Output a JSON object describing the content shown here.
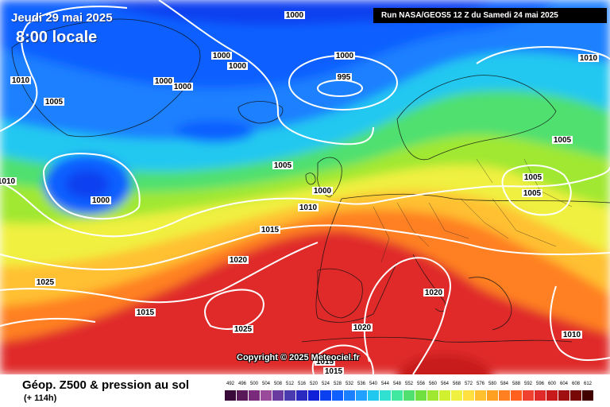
{
  "header": {
    "date_title": "Jeudi 29 mai 2025",
    "time_title": "8:00 locale",
    "run_info": "Run NASA/GEOS5 12 Z du Samedi 24 mai 2025"
  },
  "copyright": "Copyright © 2025 Meteociel.fr",
  "footer": {
    "title": "Géop. Z500 & pression au sol",
    "subtitle": "(+ 114h)"
  },
  "legend": {
    "values": [
      "492",
      "496",
      "500",
      "504",
      "508",
      "512",
      "516",
      "520",
      "524",
      "528",
      "532",
      "536",
      "540",
      "544",
      "548",
      "552",
      "556",
      "560",
      "564",
      "568",
      "572",
      "576",
      "580",
      "584",
      "588",
      "592",
      "596",
      "600",
      "604",
      "608",
      "612"
    ],
    "colors": [
      "#3a0a3a",
      "#5a1a5a",
      "#7a2a7a",
      "#9a4a9a",
      "#6a3aa0",
      "#4a3ab0",
      "#2a2ac0",
      "#1020d8",
      "#0a40f0",
      "#1060ff",
      "#1a80ff",
      "#20a0ff",
      "#20c8f0",
      "#30e0d0",
      "#40e8a0",
      "#50e070",
      "#70e040",
      "#a0e830",
      "#d0f030",
      "#f0f040",
      "#ffe040",
      "#ffc030",
      "#ffa020",
      "#ff8020",
      "#ff6020",
      "#f04030",
      "#e02a2a",
      "#c81a1a",
      "#a01010",
      "#780808",
      "#400000"
    ]
  },
  "isobar_labels": [
    {
      "text": "1000"
    },
    {
      "text": "1000"
    },
    {
      "text": "1000"
    },
    {
      "text": "1000"
    },
    {
      "text": "1000"
    },
    {
      "text": "1000"
    },
    {
      "text": "995"
    },
    {
      "text": "1010"
    },
    {
      "text": "1005"
    },
    {
      "text": "1010"
    },
    {
      "text": "1000"
    },
    {
      "text": "1005"
    },
    {
      "text": "1000"
    },
    {
      "text": "1010"
    },
    {
      "text": "1015"
    },
    {
      "text": "1005"
    },
    {
      "text": "1005"
    },
    {
      "text": "1005"
    },
    {
      "text": "1010"
    },
    {
      "text": "1020"
    },
    {
      "text": "1025"
    },
    {
      "text": "1015"
    },
    {
      "text": "1025"
    },
    {
      "text": "1020"
    },
    {
      "text": "1020"
    },
    {
      "text": "1010"
    },
    {
      "text": "1015"
    },
    {
      "text": "1015"
    }
  ]
}
